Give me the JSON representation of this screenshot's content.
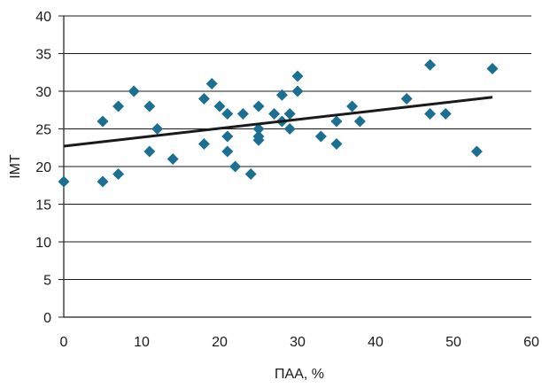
{
  "chart_data": {
    "type": "scatter",
    "xlabel": "ПАА, %",
    "ylabel": "ІМТ",
    "xlim": [
      0,
      60
    ],
    "ylim": [
      0,
      40
    ],
    "x_ticks": [
      0,
      10,
      20,
      30,
      40,
      50,
      60
    ],
    "y_ticks": [
      0,
      5,
      10,
      15,
      20,
      25,
      30,
      35,
      40
    ],
    "grid": "horizontal",
    "legend": "none",
    "marker": "diamond",
    "marker_color": "#1b6f93",
    "trendline_color": "#1a1a1a",
    "trendline": {
      "x": [
        0,
        55
      ],
      "y": [
        22.7,
        29.2
      ]
    },
    "points": {
      "x": [
        0,
        5,
        5,
        7,
        7,
        9,
        11,
        11,
        12,
        14,
        18,
        18,
        19,
        20,
        21,
        21,
        21,
        22,
        23,
        24,
        25,
        25,
        25,
        25,
        27,
        28,
        28,
        29,
        29,
        30,
        30,
        33,
        35,
        35,
        37,
        38,
        44,
        47,
        47,
        49,
        53,
        55
      ],
      "y": [
        18,
        26,
        18,
        28,
        19,
        30,
        28,
        22,
        25,
        21,
        29,
        23,
        31,
        28,
        27,
        24,
        22,
        20,
        27,
        19,
        28,
        25,
        24,
        23.5,
        27,
        29.5,
        26,
        27,
        25,
        32,
        30,
        24,
        26,
        23,
        28,
        26,
        29,
        33.5,
        27,
        27,
        22,
        33
      ]
    }
  }
}
